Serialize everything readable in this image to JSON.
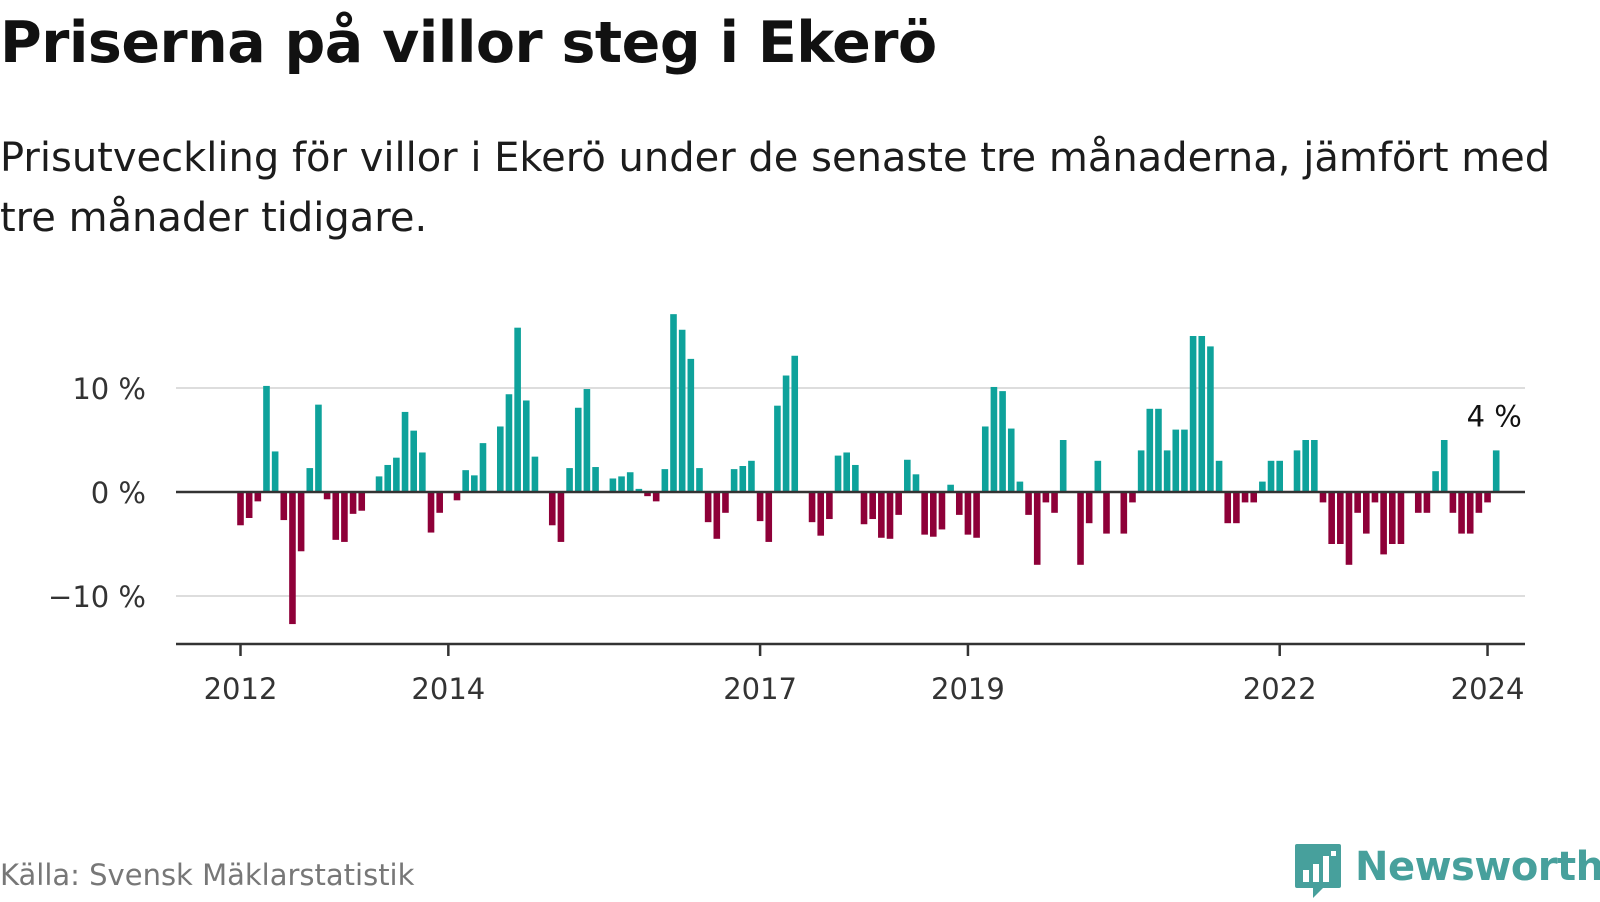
{
  "title": "Priserna på villor steg i Ekerö",
  "subtitle": "Prisutveckling för villor i Ekerö under de senaste tre månaderna, jämfört med tre månader tidigare.",
  "source": "Källa: Svensk Mäklarstatistik",
  "brand": "Newsworthy",
  "colors": {
    "positive": "#0ea29b",
    "negative": "#8e0038",
    "gridline": "#dddddd",
    "axis": "#333333",
    "brand": "#47a09c"
  },
  "chart_data": {
    "type": "bar",
    "title": "Priserna på villor steg i Ekerö",
    "xlabel": "",
    "ylabel": "",
    "unit": "%",
    "ylim": [
      -14.5,
      18
    ],
    "y_ticks": [
      {
        "value": 10,
        "label": "10 %"
      },
      {
        "value": 0,
        "label": "0 %"
      },
      {
        "value": -10,
        "label": "−10 %"
      }
    ],
    "x_ticks": [
      {
        "label": "2012",
        "date": "2012-01"
      },
      {
        "label": "2014",
        "date": "2014-01"
      },
      {
        "label": "2017",
        "date": "2017-01"
      },
      {
        "label": "2019",
        "date": "2019-01"
      },
      {
        "label": "2022",
        "date": "2022-01"
      },
      {
        "label": "2024",
        "date": "2024-01"
      }
    ],
    "start": "2011-05",
    "series": [
      {
        "name": "Prisutveckling villor Ekerö",
        "values": [
          0,
          0,
          0,
          0,
          0,
          0,
          0,
          0,
          -3.2,
          -2.5,
          -0.9,
          10.2,
          3.9,
          -2.7,
          -12.7,
          -5.7,
          2.3,
          8.4,
          -0.7,
          -4.6,
          -4.8,
          -2.1,
          -1.8,
          0,
          1.5,
          2.6,
          3.3,
          7.7,
          5.9,
          3.8,
          -3.9,
          -2,
          0,
          -0.8,
          2.1,
          1.6,
          4.7,
          0,
          6.3,
          9.4,
          15.8,
          8.8,
          3.4,
          0,
          -3.2,
          -4.8,
          2.3,
          8.1,
          9.9,
          2.4,
          0,
          1.3,
          1.5,
          1.9,
          0.3,
          -0.4,
          -0.9,
          2.2,
          17.1,
          15.6,
          12.8,
          2.3,
          -2.9,
          -4.5,
          -2,
          2.2,
          2.5,
          3,
          -2.8,
          -4.8,
          8.3,
          11.2,
          13.1,
          0,
          -2.9,
          -4.2,
          -2.6,
          3.5,
          3.8,
          2.6,
          -3.1,
          -2.6,
          -4.4,
          -4.5,
          -2.2,
          3.1,
          1.7,
          -4.1,
          -4.3,
          -3.6,
          0.7,
          -2.2,
          -4.1,
          -4.4,
          6.3,
          10.1,
          9.7,
          6.1,
          1,
          -2.2,
          -7,
          -1,
          -2,
          5,
          0,
          -7,
          -3,
          3,
          -4,
          0,
          -4,
          -1,
          4,
          8,
          8,
          4,
          6,
          6,
          15,
          15,
          14,
          3,
          -3,
          -3,
          -1,
          -1,
          1,
          3,
          3,
          0,
          4,
          5,
          5,
          -1,
          -5,
          -5,
          -7,
          -2,
          -4,
          -1,
          -6,
          -5,
          -5,
          0,
          -2,
          -2,
          2,
          5,
          -2,
          -4,
          -4,
          -2,
          -1,
          4
        ]
      }
    ],
    "annotation": {
      "label": "4 %",
      "value": 4,
      "date": "2024-02"
    }
  }
}
